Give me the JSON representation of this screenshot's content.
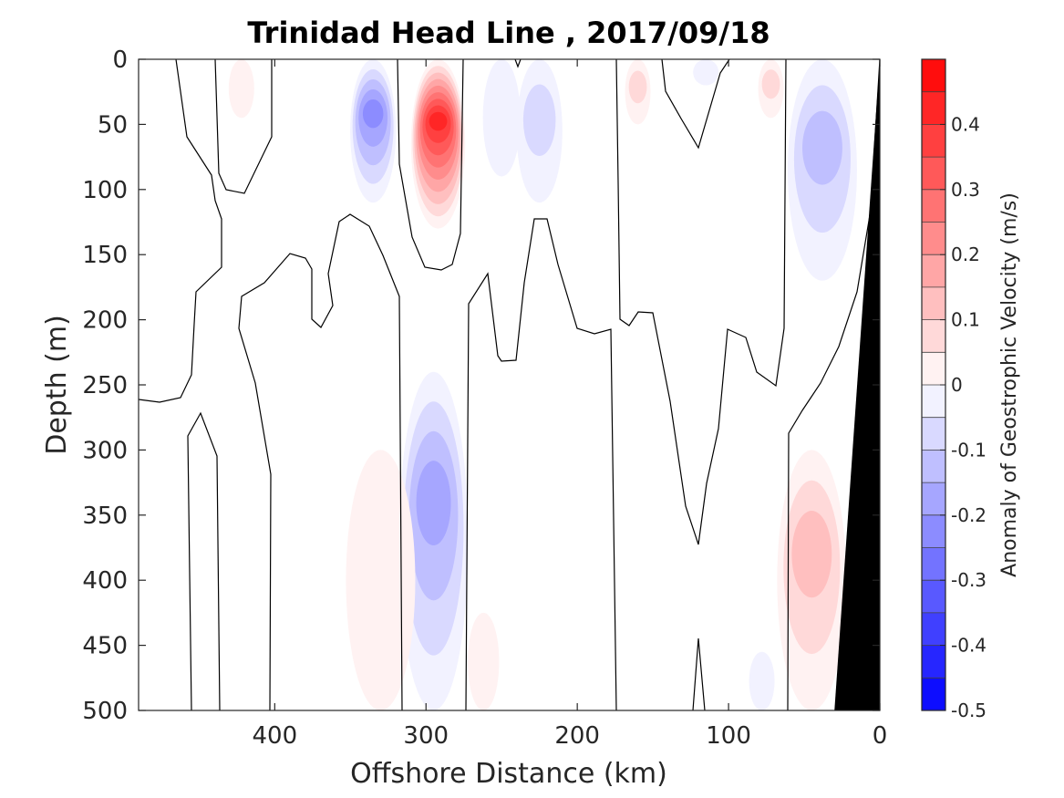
{
  "chart_data": {
    "type": "heatmap",
    "title": "Trinidad Head Line , 2017/09/18",
    "xlabel": "Offshore Distance (km)",
    "ylabel": "Depth (m)",
    "colorbar_label": "Anomaly of Geostrophic Velocity (m/s)",
    "xlim": [
      490,
      0
    ],
    "ylim": [
      0,
      500
    ],
    "x_reversed": true,
    "y_reversed": true,
    "x_ticks": [
      "400",
      "300",
      "200",
      "100",
      "0"
    ],
    "y_ticks": [
      "0",
      "50",
      "100",
      "150",
      "200",
      "250",
      "300",
      "350",
      "400",
      "450",
      "500"
    ],
    "colorbar_ticks": [
      "0.4",
      "0.3",
      "0.2",
      "0.1",
      "0",
      "-0.1",
      "-0.2",
      "-0.3",
      "-0.4",
      "-0.5"
    ],
    "colorbar_range": [
      -0.5,
      0.5
    ],
    "colorbar_step": 0.05,
    "colormap": {
      "negative": "#0000ff",
      "zero": "#ffffff",
      "positive": "#ff0000"
    },
    "bathymetry_color": "#000000",
    "features": [
      {
        "name": "strong positive core",
        "x_center": 292,
        "depth_range": [
          0,
          130
        ],
        "peak": 0.47
      },
      {
        "name": "negative surface cell",
        "x_center": 335,
        "depth_range": [
          0,
          110
        ],
        "peak": -0.27
      },
      {
        "name": "deep negative column",
        "x_center": 295,
        "depth_range": [
          240,
          500
        ],
        "peak": -0.2
      },
      {
        "name": "deep positive column",
        "x_center": 330,
        "depth_range": [
          300,
          500
        ],
        "peak": 0.07
      },
      {
        "name": "deep positive tongue",
        "x_center": 262,
        "depth_range": [
          425,
          500
        ],
        "peak": 0.07
      },
      {
        "name": "surface negative cell",
        "x_center": 225,
        "depth_range": [
          0,
          110
        ],
        "peak": -0.12
      },
      {
        "name": "surface negative cell",
        "x_center": 250,
        "depth_range": [
          0,
          90
        ],
        "peak": -0.07
      },
      {
        "name": "surface positive cell",
        "x_center": 160,
        "depth_range": [
          0,
          50
        ],
        "peak": 0.1
      },
      {
        "name": "surface positive cell",
        "x_center": 72,
        "depth_range": [
          0,
          45
        ],
        "peak": 0.1
      },
      {
        "name": "surface positive cell",
        "x_center": 422,
        "depth_range": [
          0,
          45
        ],
        "peak": 0.07
      },
      {
        "name": "surface negative cell",
        "x_center": 115,
        "depth_range": [
          0,
          20
        ],
        "peak": -0.07
      },
      {
        "name": "nearshore negative cell",
        "x_center": 38,
        "depth_range": [
          0,
          170
        ],
        "peak": -0.15
      },
      {
        "name": "nearshore deep positive",
        "x_center": 45,
        "depth_range": [
          300,
          500
        ],
        "peak": 0.17
      },
      {
        "name": "deep negative patch",
        "x_center": 78,
        "depth_range": [
          455,
          500
        ],
        "peak": -0.07
      }
    ],
    "grid": false,
    "legend": "colorbar-right"
  }
}
